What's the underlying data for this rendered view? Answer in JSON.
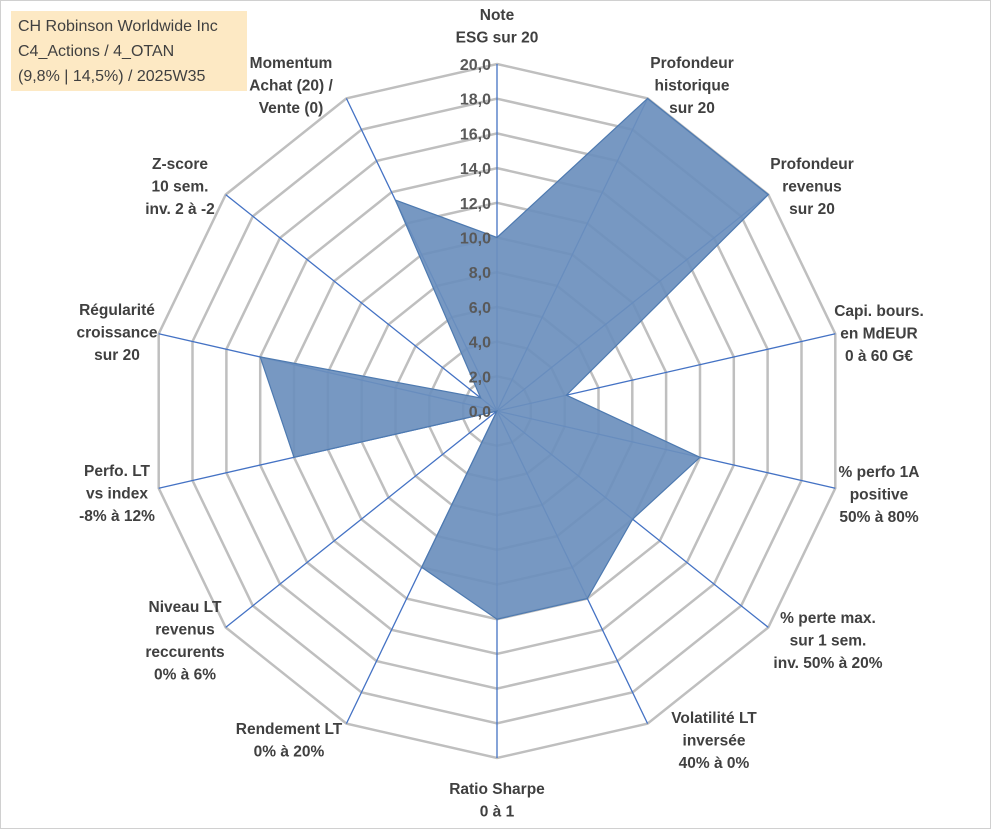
{
  "title_lines": [
    "CH Robinson Worldwide Inc",
    "C4_Actions / 4_OTAN",
    "(9,8% | 14,5%) / 2025W35"
  ],
  "chart_data": {
    "type": "radar",
    "rmax": 20,
    "ticks": [
      "0,0",
      "2,0",
      "4,0",
      "6,0",
      "8,0",
      "10,0",
      "12,0",
      "14,0",
      "16,0",
      "18,0",
      "20,0"
    ],
    "tick_values": [
      0,
      2,
      4,
      6,
      8,
      10,
      12,
      14,
      16,
      18,
      20
    ],
    "axes": [
      {
        "lines": [
          "Note",
          "ESG sur 20"
        ]
      },
      {
        "lines": [
          "Profondeur",
          "historique",
          "sur 20"
        ]
      },
      {
        "lines": [
          "Profondeur",
          "revenus",
          "sur 20"
        ]
      },
      {
        "lines": [
          "Capi. bours.",
          "en MdEUR",
          "0 à 60 G€"
        ]
      },
      {
        "lines": [
          "% perfo 1A",
          "positive",
          "50% à 80%"
        ]
      },
      {
        "lines": [
          "% perte max.",
          "sur 1 sem.",
          "inv. 50% à 20%"
        ]
      },
      {
        "lines": [
          "Volatilité LT",
          "inversée",
          "40% à 0%"
        ]
      },
      {
        "lines": [
          "Ratio Sharpe",
          "0 à 1"
        ]
      },
      {
        "lines": [
          "Rendement LT",
          "0% à 20%"
        ]
      },
      {
        "lines": [
          "Niveau LT",
          "revenus",
          "reccurents",
          "0% à 6%"
        ]
      },
      {
        "lines": [
          "Perfo. LT",
          "vs index",
          "-8% à 12%"
        ]
      },
      {
        "lines": [
          "Régularité",
          "croissance",
          "sur 20"
        ]
      },
      {
        "lines": [
          "Z-score",
          "10 sem.",
          "inv. 2 à -2"
        ]
      },
      {
        "lines": [
          "Momentum",
          "Achat (20) /",
          "Vente (0)"
        ]
      }
    ],
    "values": [
      10.0,
      20.0,
      20.0,
      4.1,
      12.0,
      10.0,
      12.0,
      12.0,
      10.0,
      0.0,
      12.0,
      14.0,
      1.2,
      13.5
    ],
    "fill_color": "#6b8fbd",
    "stroke_color": "#4e7ab0",
    "grid_color": "#bfbfbf",
    "axis_color": "#4472c4"
  }
}
